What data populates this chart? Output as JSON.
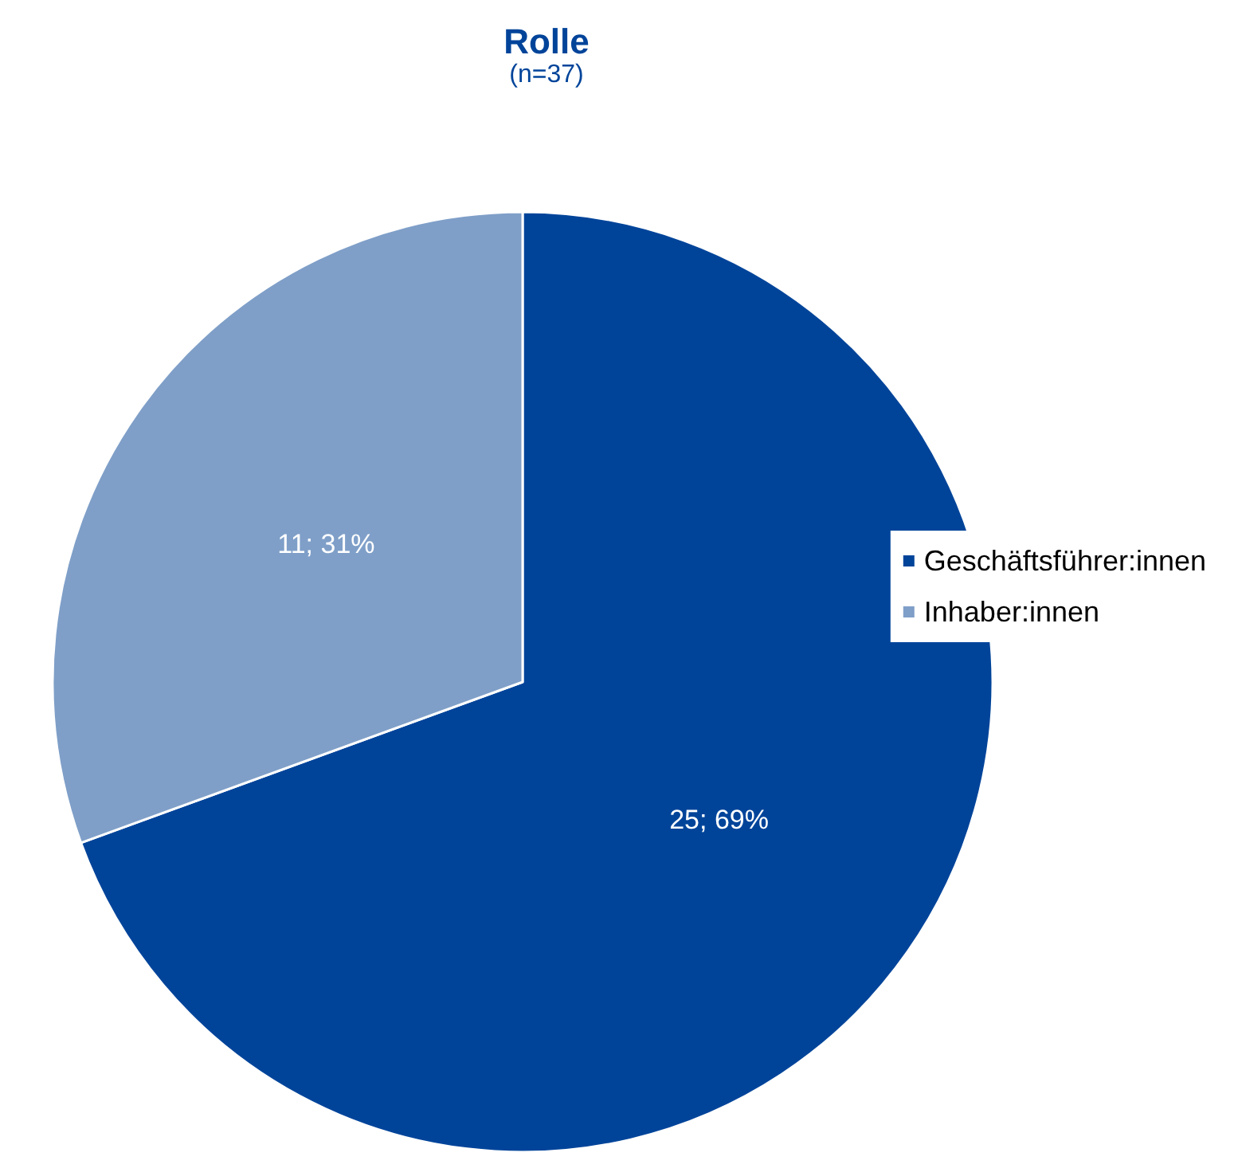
{
  "chart_data": {
    "type": "pie",
    "title": "Rolle",
    "subtitle": "(n=37)",
    "categories": [
      "Geschäftsführer:innen",
      "Inhaber:innen"
    ],
    "values": [
      25,
      11
    ],
    "colors": [
      "#00449a",
      "#7f9fc8"
    ],
    "value_labels": [
      "25; 69%",
      "11; 31%"
    ],
    "legend": "right"
  }
}
